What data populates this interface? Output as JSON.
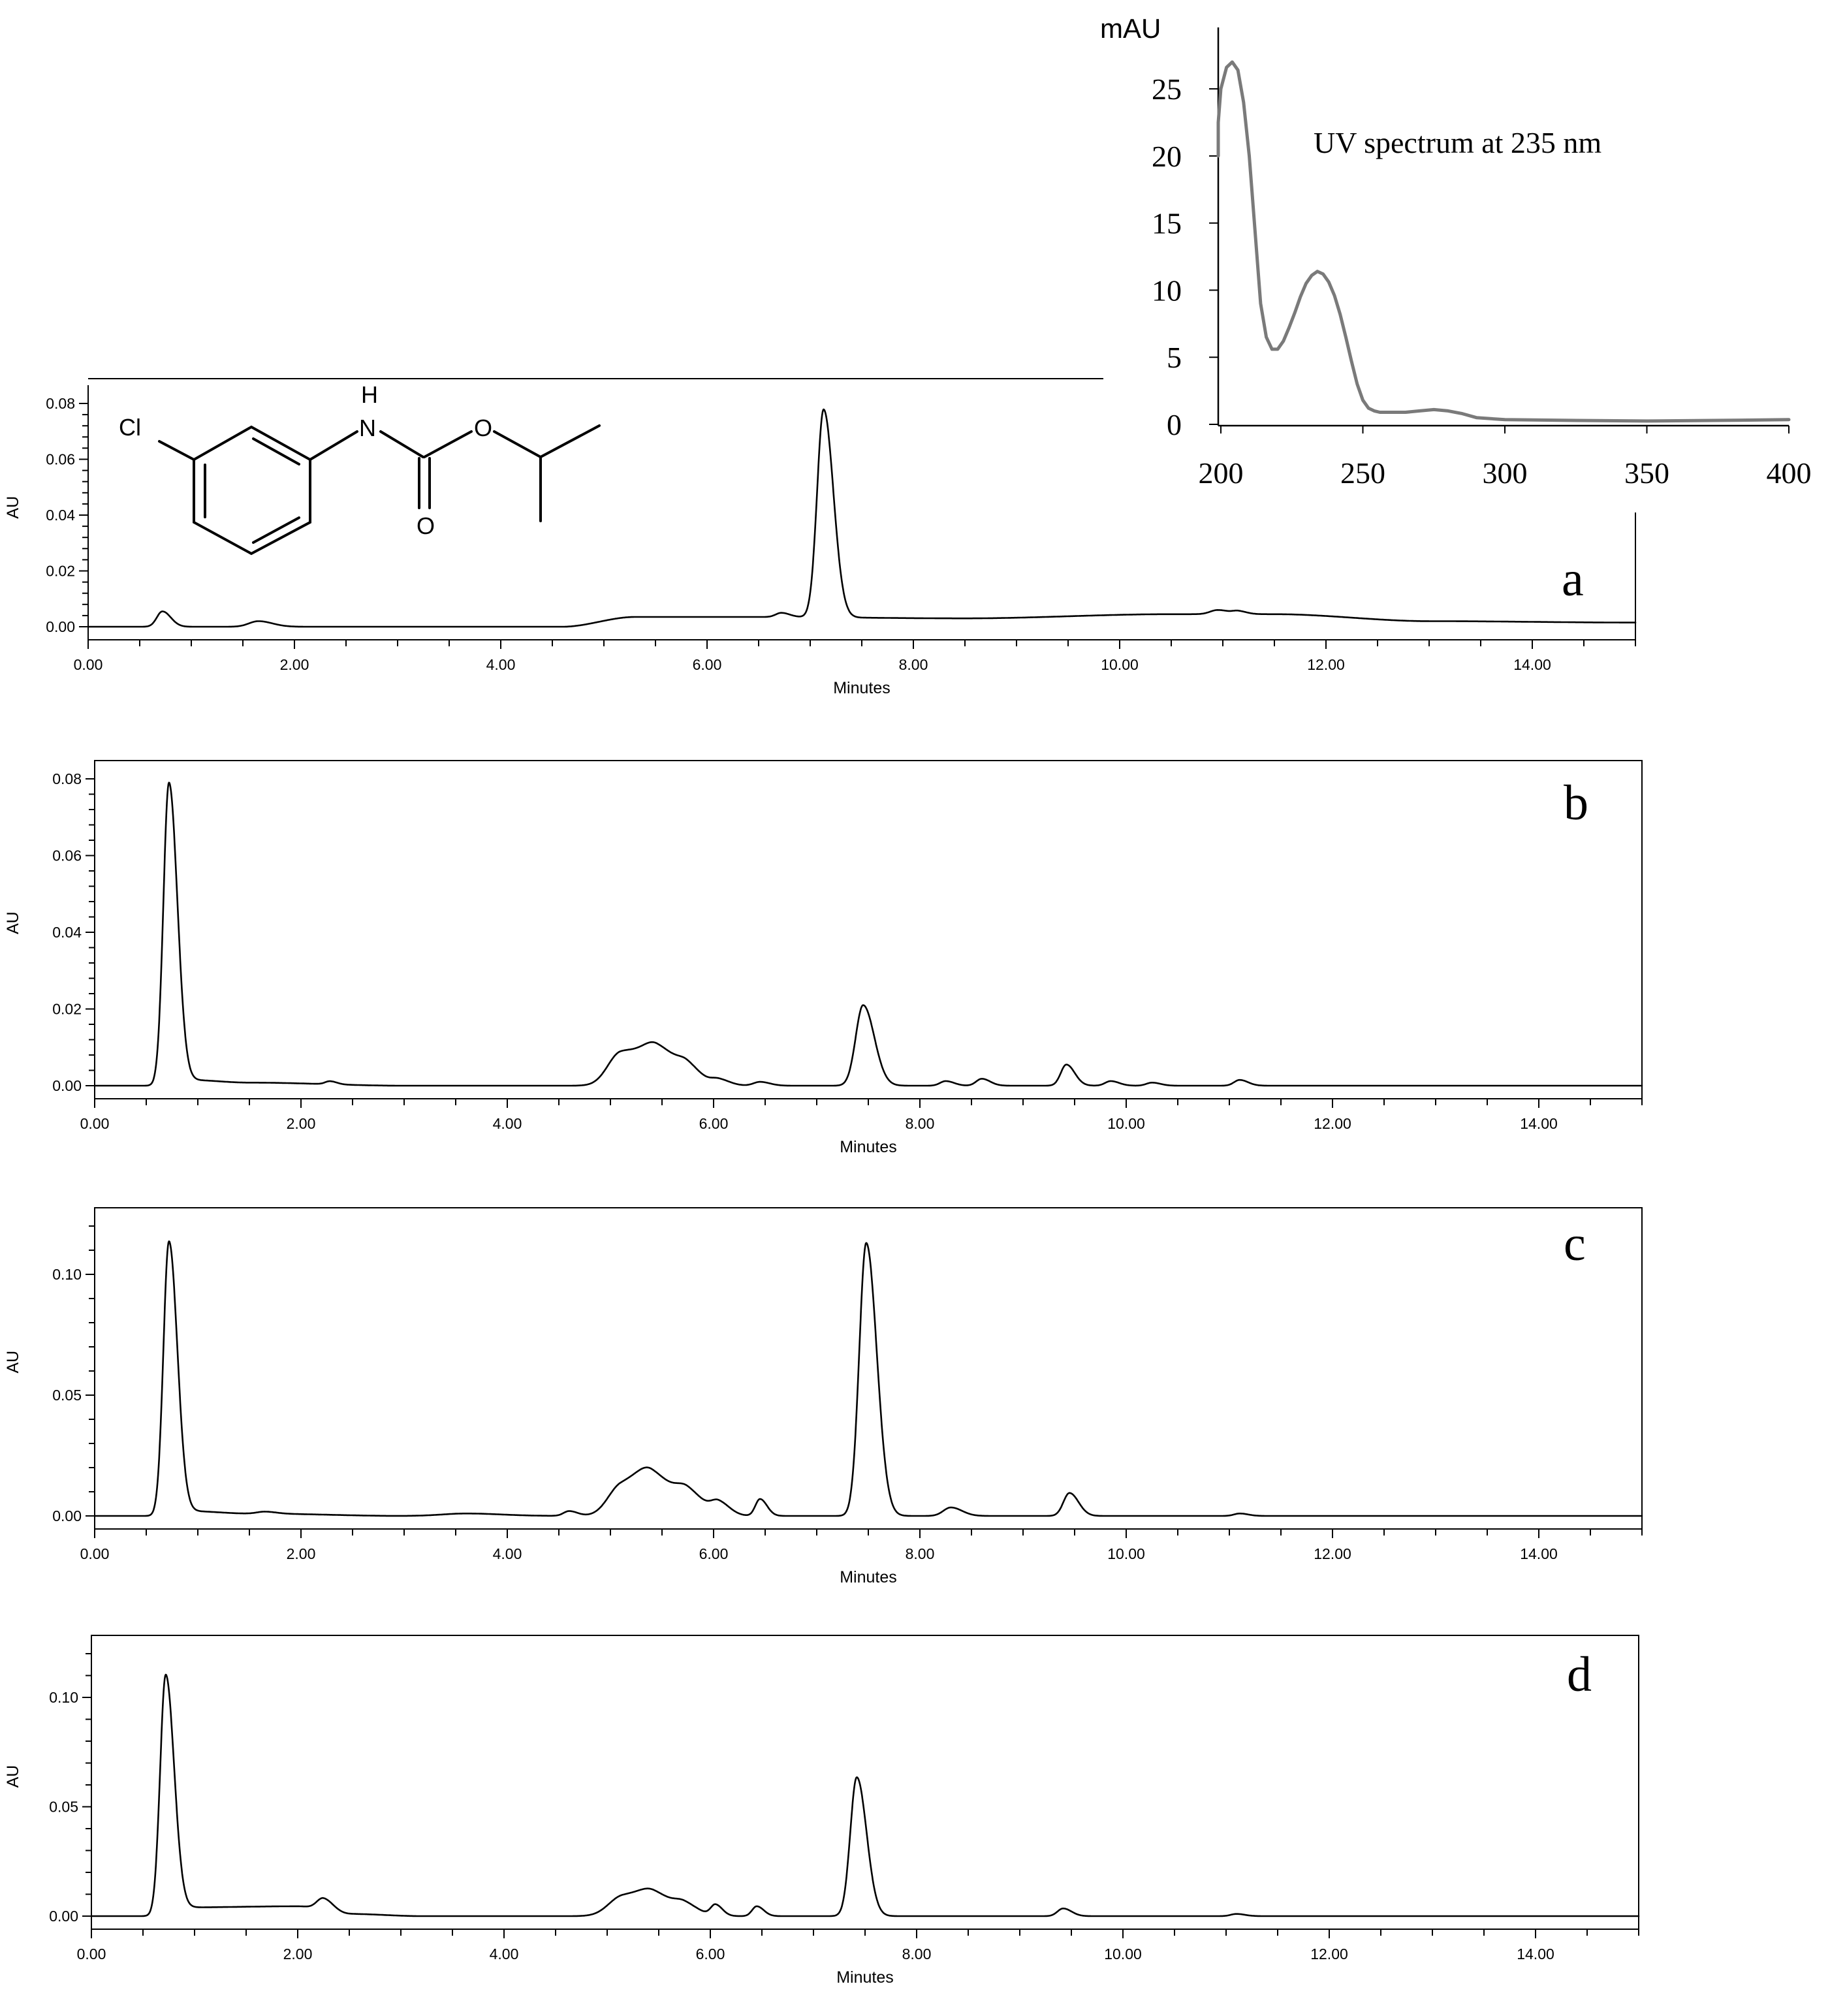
{
  "chart_data": [
    {
      "id": "a",
      "type": "line",
      "panel_label": "a",
      "xlabel": "Minutes",
      "ylabel": "AU",
      "xlim": [
        0,
        15
      ],
      "ylim": [
        0,
        0.08
      ],
      "xticks": [
        "0.00",
        "2.00",
        "4.00",
        "6.00",
        "8.00",
        "10.00",
        "12.00",
        "14.00"
      ],
      "yticks": [
        "0.00",
        "0.02",
        "0.04",
        "0.06",
        "0.08"
      ],
      "baseline": [
        [
          0,
          0.0
        ],
        [
          0.6,
          0.0
        ],
        [
          2.0,
          0.0
        ],
        [
          4.6,
          0.0
        ],
        [
          5.3,
          0.0035
        ],
        [
          6.5,
          0.0035
        ],
        [
          8.5,
          0.003
        ],
        [
          10.5,
          0.0045
        ],
        [
          11.5,
          0.0045
        ],
        [
          13.0,
          0.002
        ],
        [
          15.0,
          0.0015
        ]
      ],
      "peaks": [
        {
          "rt": 0.72,
          "height": 0.0055,
          "width": 0.06
        },
        {
          "rt": 1.65,
          "height": 0.002,
          "width": 0.1
        },
        {
          "rt": 6.72,
          "height": 0.0015,
          "width": 0.06
        },
        {
          "rt": 7.13,
          "height": 0.0745,
          "width": 0.07
        },
        {
          "rt": 10.95,
          "height": 0.0015,
          "width": 0.08
        },
        {
          "rt": 11.15,
          "height": 0.001,
          "width": 0.06
        }
      ]
    },
    {
      "id": "b",
      "type": "line",
      "panel_label": "b",
      "xlabel": "Minutes",
      "ylabel": "AU",
      "xlim": [
        0,
        15
      ],
      "ylim": [
        0,
        0.08
      ],
      "xticks": [
        "0.00",
        "2.00",
        "4.00",
        "6.00",
        "8.00",
        "10.00",
        "12.00",
        "14.00"
      ],
      "yticks": [
        "0.00",
        "0.02",
        "0.04",
        "0.06",
        "0.08"
      ],
      "baseline": [
        [
          0,
          0.0
        ],
        [
          0.6,
          0.0
        ],
        [
          0.9,
          0.0015
        ],
        [
          1.5,
          0.0008
        ],
        [
          3.0,
          0.0
        ],
        [
          15.0,
          0.0
        ]
      ],
      "peaks": [
        {
          "rt": 0.72,
          "height": 0.0785,
          "width": 0.06
        },
        {
          "rt": 2.28,
          "height": 0.0008,
          "width": 0.05
        },
        {
          "rt": 5.1,
          "height": 0.0085,
          "width": 0.14
        },
        {
          "rt": 5.45,
          "height": 0.0095,
          "width": 0.16
        },
        {
          "rt": 5.75,
          "height": 0.003,
          "width": 0.1
        },
        {
          "rt": 6.05,
          "height": 0.0015,
          "width": 0.08
        },
        {
          "rt": 6.45,
          "height": 0.001,
          "width": 0.07
        },
        {
          "rt": 7.45,
          "height": 0.021,
          "width": 0.08
        },
        {
          "rt": 8.25,
          "height": 0.0012,
          "width": 0.06
        },
        {
          "rt": 8.6,
          "height": 0.0018,
          "width": 0.06
        },
        {
          "rt": 9.42,
          "height": 0.0055,
          "width": 0.06
        },
        {
          "rt": 9.85,
          "height": 0.0012,
          "width": 0.06
        },
        {
          "rt": 10.25,
          "height": 0.0008,
          "width": 0.06
        },
        {
          "rt": 11.1,
          "height": 0.0015,
          "width": 0.06
        }
      ]
    },
    {
      "id": "c",
      "type": "line",
      "panel_label": "c",
      "xlabel": "Minutes",
      "ylabel": "AU",
      "xlim": [
        0,
        15
      ],
      "ylim": [
        0,
        0.12
      ],
      "xticks": [
        "0.00",
        "2.00",
        "4.00",
        "6.00",
        "8.00",
        "10.00",
        "12.00",
        "14.00"
      ],
      "yticks": [
        "0.00",
        "0.05",
        "0.10"
      ],
      "baseline": [
        [
          0,
          0.0
        ],
        [
          0.6,
          0.0
        ],
        [
          0.9,
          0.002
        ],
        [
          1.5,
          0.001
        ],
        [
          3.0,
          0.0
        ],
        [
          15.0,
          0.0
        ]
      ],
      "peaks": [
        {
          "rt": 0.72,
          "height": 0.113,
          "width": 0.06
        },
        {
          "rt": 1.65,
          "height": 0.0008,
          "width": 0.08
        },
        {
          "rt": 3.6,
          "height": 0.001,
          "width": 0.25
        },
        {
          "rt": 4.6,
          "height": 0.002,
          "width": 0.06
        },
        {
          "rt": 5.1,
          "height": 0.012,
          "width": 0.14
        },
        {
          "rt": 5.4,
          "height": 0.016,
          "width": 0.16
        },
        {
          "rt": 5.75,
          "height": 0.008,
          "width": 0.12
        },
        {
          "rt": 6.05,
          "height": 0.005,
          "width": 0.08
        },
        {
          "rt": 6.45,
          "height": 0.007,
          "width": 0.05
        },
        {
          "rt": 7.48,
          "height": 0.113,
          "width": 0.075
        },
        {
          "rt": 8.3,
          "height": 0.0035,
          "width": 0.08
        },
        {
          "rt": 9.45,
          "height": 0.0095,
          "width": 0.065
        },
        {
          "rt": 11.1,
          "height": 0.001,
          "width": 0.06
        }
      ]
    },
    {
      "id": "d",
      "type": "line",
      "panel_label": "d",
      "xlabel": "Minutes",
      "ylabel": "AU",
      "xlim": [
        0,
        15
      ],
      "ylim": [
        0,
        0.12
      ],
      "xticks": [
        "0.00",
        "2.00",
        "4.00",
        "6.00",
        "8.00",
        "10.00",
        "12.00",
        "14.00"
      ],
      "yticks": [
        "0.00",
        "0.05",
        "0.10"
      ],
      "baseline": [
        [
          0,
          0.0
        ],
        [
          0.6,
          0.0
        ],
        [
          0.9,
          0.004
        ],
        [
          2.0,
          0.0045
        ],
        [
          2.5,
          0.001
        ],
        [
          3.2,
          0.0
        ],
        [
          15.0,
          0.0
        ]
      ],
      "peaks": [
        {
          "rt": 0.72,
          "height": 0.109,
          "width": 0.06
        },
        {
          "rt": 2.25,
          "height": 0.0055,
          "width": 0.07
        },
        {
          "rt": 5.15,
          "height": 0.009,
          "width": 0.15
        },
        {
          "rt": 5.45,
          "height": 0.009,
          "width": 0.15
        },
        {
          "rt": 5.75,
          "height": 0.004,
          "width": 0.1
        },
        {
          "rt": 6.05,
          "height": 0.005,
          "width": 0.05
        },
        {
          "rt": 6.45,
          "height": 0.0045,
          "width": 0.05
        },
        {
          "rt": 7.42,
          "height": 0.0635,
          "width": 0.07
        },
        {
          "rt": 9.42,
          "height": 0.0035,
          "width": 0.06
        },
        {
          "rt": 11.1,
          "height": 0.001,
          "width": 0.06
        }
      ]
    },
    {
      "id": "uv",
      "type": "line",
      "title": "UV spectrum  at 235 nm",
      "ylabel": "mAU",
      "xlim": [
        200,
        400
      ],
      "ylim": [
        0,
        27
      ],
      "xticks": [
        "200",
        "250",
        "300",
        "350",
        "400"
      ],
      "yticks": [
        "0",
        "5",
        "10",
        "15",
        "20",
        "25"
      ],
      "x": [
        196,
        198,
        200,
        202,
        204,
        206,
        208,
        210,
        212,
        214,
        216,
        218,
        220,
        222,
        224,
        226,
        228,
        230,
        232,
        234,
        236,
        238,
        240,
        242,
        244,
        246,
        248,
        250,
        252,
        254,
        256,
        260,
        265,
        270,
        275,
        280,
        285,
        290,
        300,
        320,
        350,
        380,
        400
      ],
      "y": [
        20,
        22.5,
        25,
        26.6,
        27,
        26.4,
        24,
        20,
        14.5,
        9,
        6.5,
        5.6,
        5.6,
        6.2,
        7.2,
        8.3,
        9.5,
        10.5,
        11.1,
        11.4,
        11.2,
        10.6,
        9.6,
        8.2,
        6.5,
        4.7,
        3.0,
        1.8,
        1.2,
        1.0,
        0.9,
        0.9,
        0.9,
        1.0,
        1.1,
        1.0,
        0.8,
        0.5,
        0.35,
        0.3,
        0.25,
        0.3,
        0.35
      ]
    }
  ],
  "molecule": {
    "atoms": [
      "Cl",
      "H",
      "N",
      "O",
      "O"
    ]
  }
}
